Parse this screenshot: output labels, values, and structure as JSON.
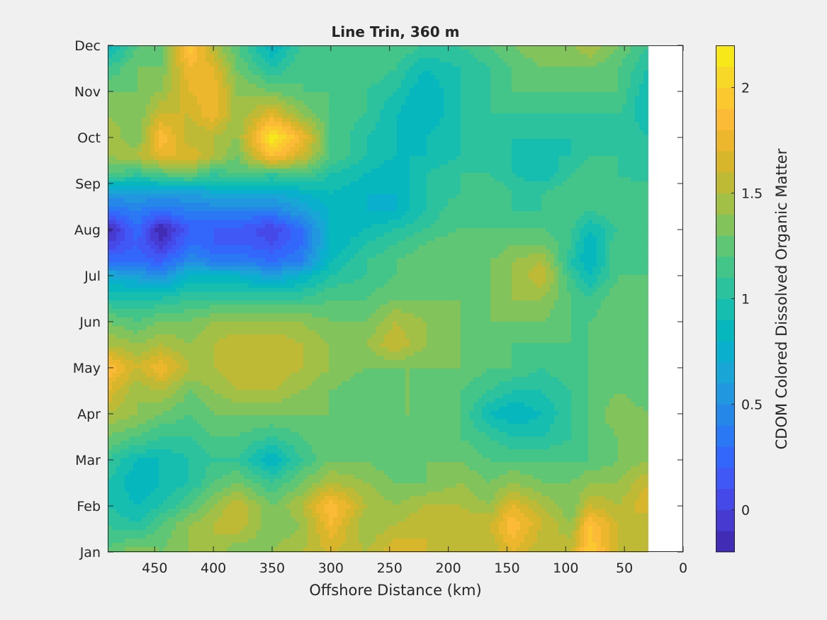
{
  "chart_data": {
    "type": "heatmap",
    "title": "Line Trin, 360 m",
    "xlabel": "Offshore Distance (km)",
    "ylabel": "",
    "xlim": [
      0,
      490
    ],
    "x_reversed": true,
    "x_ticks": [
      450,
      400,
      350,
      300,
      250,
      200,
      150,
      100,
      50,
      0
    ],
    "y_ticks": [
      "Jan",
      "Feb",
      "Mar",
      "Apr",
      "May",
      "Jun",
      "Jul",
      "Aug",
      "Sep",
      "Oct",
      "Nov",
      "Dec"
    ],
    "data_extent_km": [
      30,
      490
    ],
    "colorbar": {
      "label": "CDOM Colored Dissolved Organic Matter",
      "lim": [
        -0.2,
        2.2
      ],
      "ticks": [
        0,
        0.5,
        1,
        1.5,
        2
      ],
      "levels": 24,
      "colormap": [
        "#3e26a8",
        "#4636c8",
        "#4547e6",
        "#3f59f7",
        "#2f6cfc",
        "#2780ee",
        "#2392e1",
        "#1ba4d7",
        "#07b0cc",
        "#06bab9",
        "#21c0a7",
        "#3bc48f",
        "#5bc676",
        "#85c35a",
        "#abbd3f",
        "#cdb72e",
        "#e7b42a",
        "#fbba37",
        "#fcc92f",
        "#f5dc24",
        "#f9f013"
      ]
    },
    "x_grid_km": [
      490,
      465,
      445,
      420,
      400,
      380,
      350,
      325,
      300,
      270,
      245,
      220,
      190,
      165,
      145,
      120,
      95,
      80,
      55,
      30
    ],
    "y_grid_month": [
      1.0,
      1.6,
      2.0,
      2.5,
      3.0,
      3.5,
      4.0,
      4.5,
      5.0,
      5.5,
      6.0,
      6.5,
      7.0,
      7.3,
      7.7,
      8.0,
      8.4,
      8.8,
      9.2,
      9.6,
      10.0,
      10.5,
      11.0,
      11.5,
      12.0,
      12.5,
      12.95
    ],
    "z": [
      [
        1.2,
        1.4,
        1.3,
        1.4,
        1.5,
        1.3,
        1.4,
        1.5,
        1.6,
        1.5,
        1.7,
        1.6,
        1.5,
        1.5,
        1.7,
        1.5,
        1.6,
        2.0,
        1.6,
        1.6
      ],
      [
        1.1,
        1.0,
        1.2,
        1.4,
        1.5,
        1.6,
        1.3,
        1.4,
        1.8,
        1.4,
        1.5,
        1.6,
        1.6,
        1.6,
        1.9,
        1.6,
        1.4,
        1.9,
        1.6,
        1.5
      ],
      [
        1.0,
        0.9,
        1.0,
        1.2,
        1.4,
        1.6,
        1.3,
        1.5,
        1.9,
        1.5,
        1.4,
        1.5,
        1.5,
        1.4,
        1.7,
        1.5,
        1.3,
        1.6,
        1.5,
        1.7
      ],
      [
        1.0,
        0.8,
        0.9,
        1.0,
        1.2,
        1.3,
        1.1,
        1.3,
        1.5,
        1.4,
        1.3,
        1.3,
        1.4,
        1.3,
        1.4,
        1.3,
        1.3,
        1.4,
        1.4,
        1.6
      ],
      [
        1.1,
        0.9,
        0.9,
        1.0,
        1.1,
        1.1,
        0.8,
        1.1,
        1.3,
        1.3,
        1.2,
        1.3,
        1.3,
        1.2,
        1.2,
        1.2,
        1.2,
        1.2,
        1.3,
        1.4
      ],
      [
        1.3,
        1.2,
        1.1,
        1.1,
        1.2,
        1.2,
        1.1,
        1.2,
        1.3,
        1.3,
        1.2,
        1.3,
        1.2,
        1.1,
        1.0,
        1.0,
        1.1,
        1.2,
        1.3,
        1.3
      ],
      [
        1.5,
        1.4,
        1.3,
        1.2,
        1.3,
        1.3,
        1.3,
        1.3,
        1.3,
        1.2,
        1.3,
        1.3,
        1.2,
        0.9,
        0.8,
        0.9,
        1.1,
        1.2,
        1.4,
        1.3
      ],
      [
        1.7,
        1.4,
        1.5,
        1.3,
        1.4,
        1.5,
        1.5,
        1.4,
        1.3,
        1.2,
        1.3,
        1.3,
        1.2,
        1.1,
        1.0,
        1.0,
        1.1,
        1.2,
        1.3,
        1.2
      ],
      [
        1.9,
        1.6,
        1.8,
        1.5,
        1.5,
        1.6,
        1.6,
        1.5,
        1.4,
        1.3,
        1.3,
        1.3,
        1.3,
        1.2,
        1.2,
        1.1,
        1.2,
        1.2,
        1.3,
        1.2
      ],
      [
        1.5,
        1.4,
        1.5,
        1.4,
        1.5,
        1.6,
        1.6,
        1.5,
        1.4,
        1.4,
        1.6,
        1.4,
        1.3,
        1.3,
        1.2,
        1.2,
        1.2,
        1.2,
        1.3,
        1.2
      ],
      [
        1.3,
        1.2,
        1.3,
        1.3,
        1.4,
        1.4,
        1.4,
        1.4,
        1.3,
        1.3,
        1.5,
        1.4,
        1.3,
        1.3,
        1.3,
        1.3,
        1.2,
        1.2,
        1.3,
        1.2
      ],
      [
        1.0,
        1.0,
        1.0,
        1.1,
        1.1,
        1.1,
        1.1,
        1.1,
        1.2,
        1.2,
        1.3,
        1.3,
        1.3,
        1.3,
        1.4,
        1.4,
        1.2,
        1.1,
        1.3,
        1.2
      ],
      [
        0.7,
        0.6,
        0.5,
        0.8,
        0.8,
        0.8,
        0.6,
        0.8,
        1.0,
        1.1,
        1.2,
        1.3,
        1.3,
        1.3,
        1.4,
        1.6,
        1.1,
        0.9,
        1.2,
        1.2
      ],
      [
        0.3,
        0.3,
        0.2,
        0.5,
        0.4,
        0.4,
        0.3,
        0.4,
        0.9,
        1.1,
        1.2,
        1.3,
        1.3,
        1.3,
        1.4,
        1.5,
        1.0,
        0.8,
        1.2,
        1.1
      ],
      [
        0.0,
        0.2,
        -0.1,
        0.3,
        0.2,
        0.2,
        0.1,
        0.3,
        0.8,
        1.0,
        1.1,
        1.2,
        1.3,
        1.2,
        1.3,
        1.3,
        1.1,
        0.8,
        1.2,
        1.2
      ],
      [
        -0.2,
        0.3,
        -0.2,
        0.2,
        0.2,
        0.2,
        0.0,
        0.3,
        0.8,
        0.9,
        1.0,
        1.1,
        1.2,
        1.2,
        1.2,
        1.2,
        1.1,
        0.9,
        1.1,
        1.2
      ],
      [
        0.3,
        0.4,
        0.3,
        0.4,
        0.4,
        0.4,
        0.4,
        0.6,
        0.8,
        0.8,
        0.8,
        1.0,
        1.2,
        1.1,
        1.1,
        1.1,
        1.2,
        1.1,
        1.2,
        1.2
      ],
      [
        0.6,
        0.6,
        0.6,
        0.6,
        0.7,
        0.7,
        0.7,
        0.8,
        0.9,
        0.8,
        0.8,
        1.0,
        1.1,
        1.2,
        1.1,
        1.1,
        1.2,
        1.2,
        1.2,
        1.2
      ],
      [
        1.2,
        1.1,
        1.2,
        1.3,
        1.1,
        1.2,
        1.1,
        1.2,
        1.0,
        0.9,
        0.8,
        1.0,
        1.1,
        1.1,
        1.0,
        0.9,
        1.1,
        1.2,
        1.1,
        1.0
      ],
      [
        1.4,
        1.5,
        1.7,
        1.7,
        1.5,
        1.3,
        1.9,
        1.6,
        1.2,
        1.0,
        0.9,
        0.9,
        1.0,
        1.1,
        1.0,
        1.0,
        1.0,
        1.1,
        1.1,
        1.0
      ],
      [
        1.5,
        1.3,
        1.9,
        1.5,
        1.5,
        1.4,
        2.2,
        1.8,
        1.2,
        1.0,
        0.9,
        0.9,
        1.0,
        1.1,
        1.0,
        1.0,
        1.0,
        1.1,
        1.1,
        1.0
      ],
      [
        1.4,
        1.3,
        1.6,
        1.6,
        1.8,
        1.4,
        1.7,
        1.4,
        1.2,
        1.1,
        0.9,
        0.8,
        1.0,
        1.1,
        1.1,
        1.1,
        1.1,
        1.1,
        1.1,
        0.9
      ],
      [
        1.3,
        1.3,
        1.4,
        1.7,
        1.8,
        1.4,
        1.3,
        1.2,
        1.2,
        1.1,
        1.0,
        0.8,
        1.0,
        1.1,
        1.2,
        1.2,
        1.2,
        1.2,
        1.2,
        0.9
      ],
      [
        1.1,
        1.3,
        1.3,
        1.8,
        1.7,
        1.3,
        1.0,
        1.2,
        1.2,
        1.2,
        1.1,
        0.9,
        1.0,
        1.1,
        1.2,
        1.3,
        1.3,
        1.3,
        1.2,
        1.0
      ],
      [
        0.8,
        1.2,
        1.2,
        2.0,
        1.5,
        1.2,
        0.8,
        1.1,
        1.2,
        1.2,
        1.2,
        1.1,
        1.1,
        1.2,
        1.3,
        1.4,
        1.4,
        1.5,
        1.3,
        1.1
      ],
      [
        0.9,
        1.2,
        0.8,
        1.9,
        1.4,
        1.1,
        0.7,
        1.0,
        1.2,
        1.2,
        1.3,
        1.2,
        1.2,
        1.3,
        1.3,
        1.5,
        1.5,
        1.8,
        1.4,
        1.2
      ],
      [
        1.1,
        1.2,
        0.8,
        1.7,
        1.3,
        1.2,
        0.9,
        1.1,
        1.2,
        1.3,
        1.5,
        1.3,
        1.3,
        1.3,
        1.4,
        1.5,
        1.6,
        2.0,
        1.5,
        1.3
      ]
    ]
  }
}
